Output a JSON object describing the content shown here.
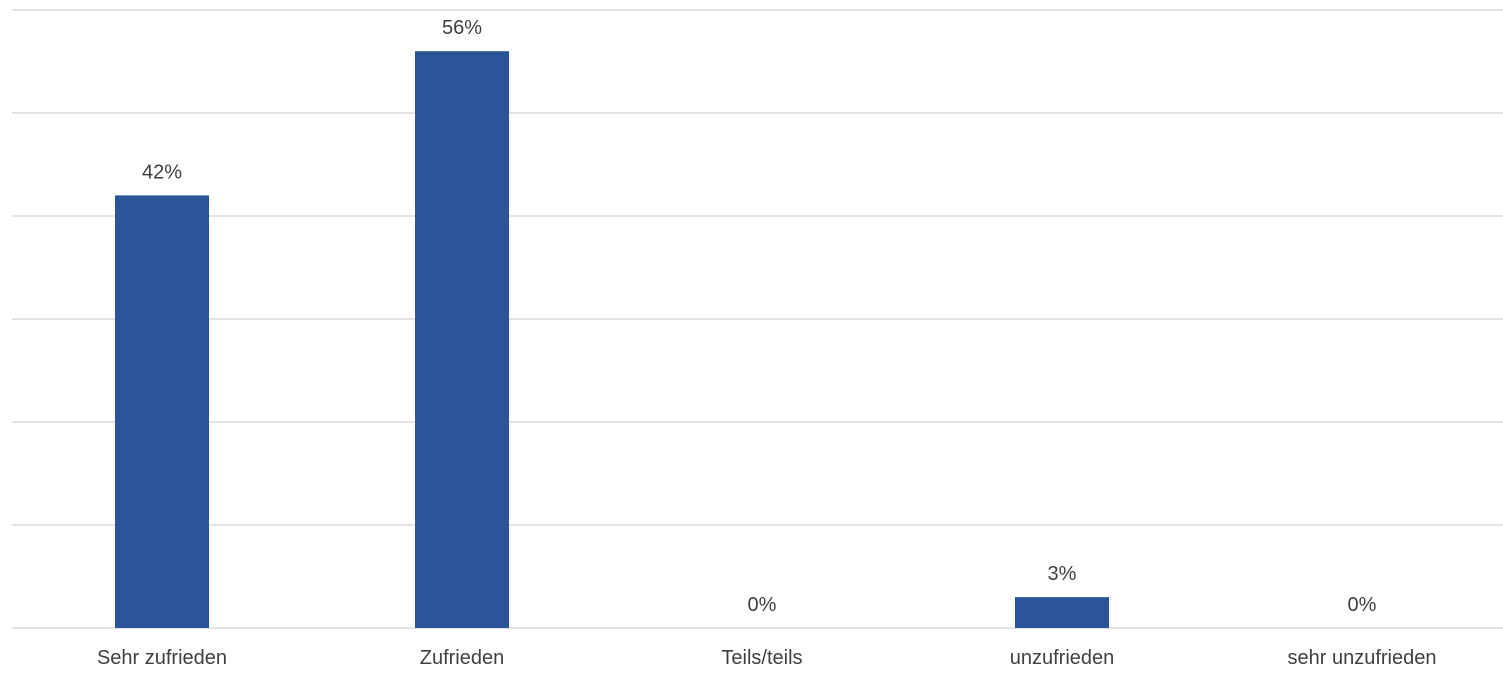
{
  "chart_data": {
    "type": "bar",
    "categories": [
      "Sehr zufrieden",
      "Zufrieden",
      "Teils/teils",
      "unzufrieden",
      "sehr unzufrieden"
    ],
    "values": [
      42,
      56,
      0,
      3,
      0
    ],
    "data_labels": [
      "42%",
      "56%",
      "0%",
      "3%",
      "0%"
    ],
    "ylim": [
      0,
      60
    ],
    "grid": true,
    "y_gridline_step": 10,
    "bar_color": "#2a5699",
    "gridline_color": "#d9d9d9",
    "text_color": "#404040"
  }
}
